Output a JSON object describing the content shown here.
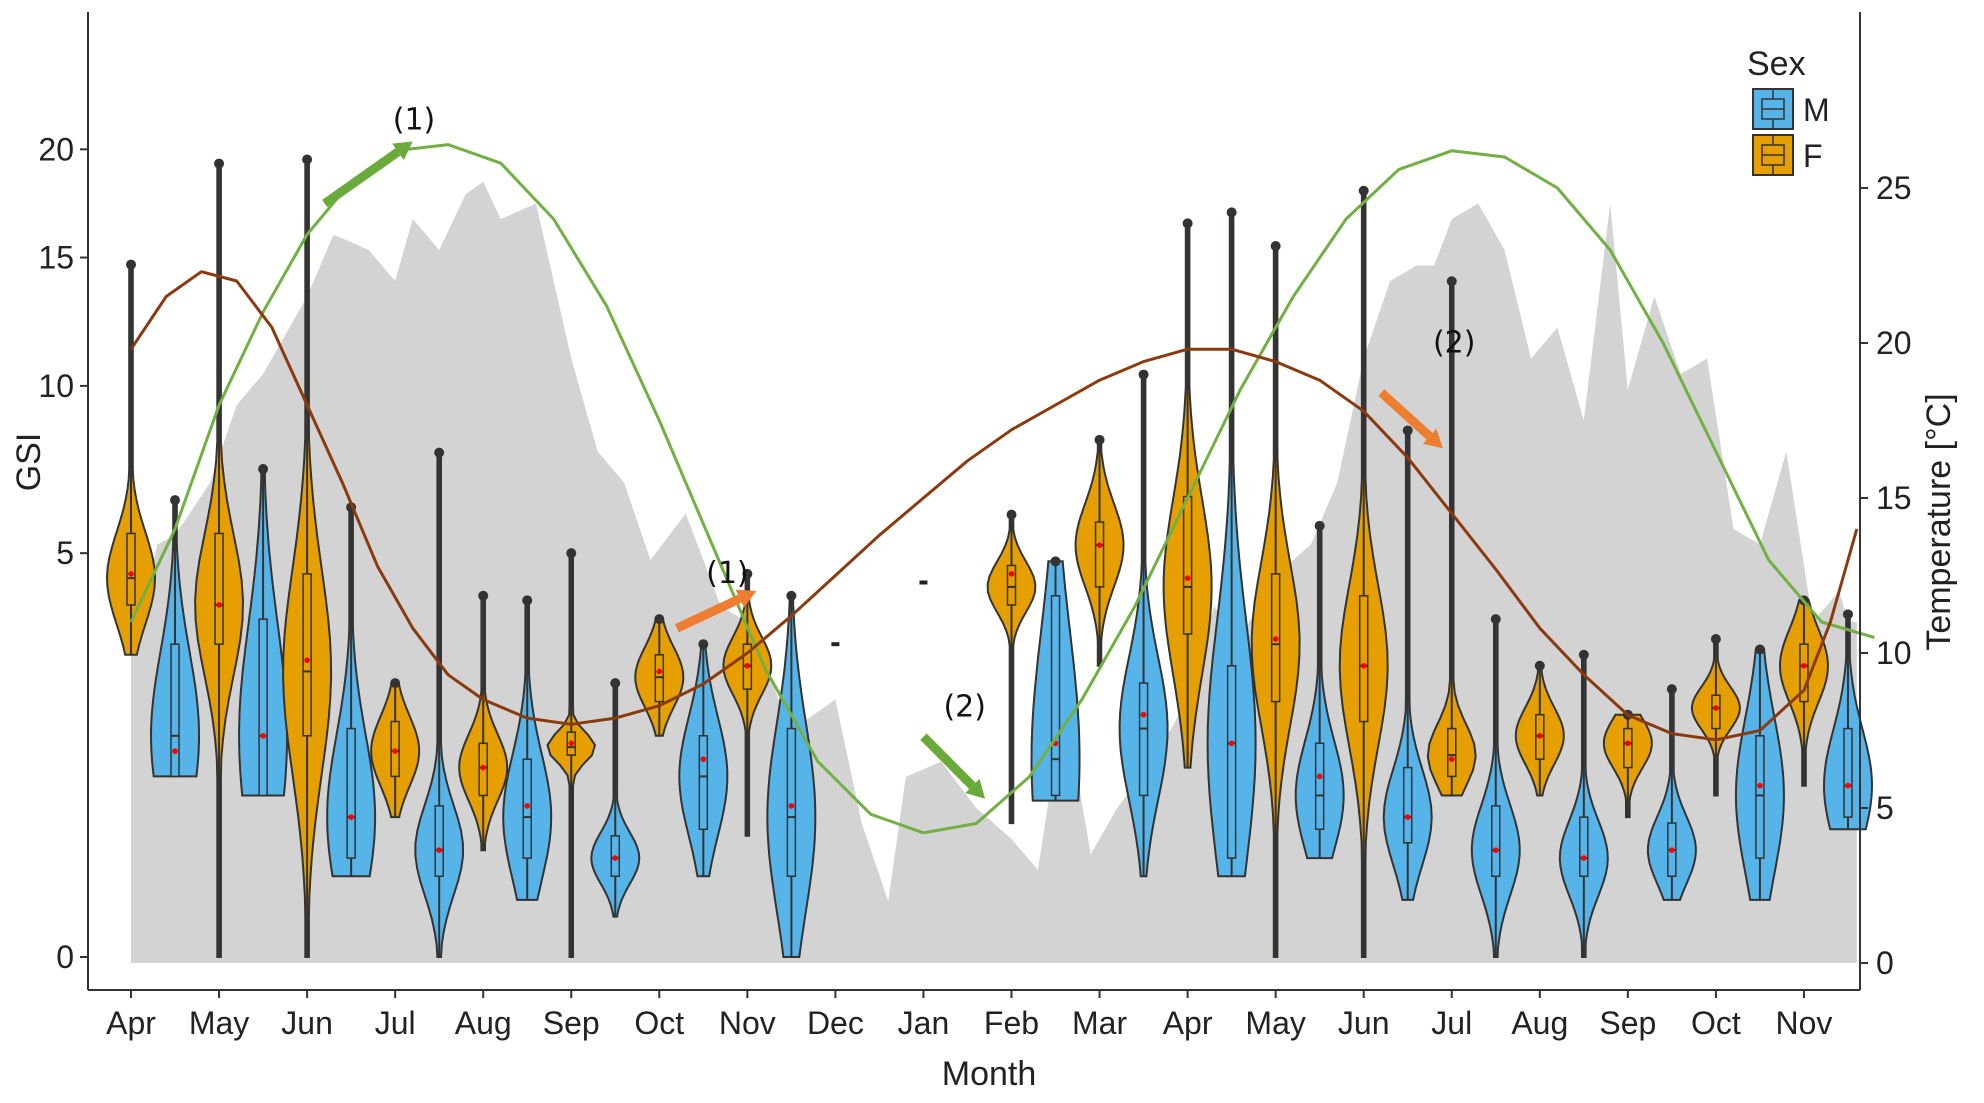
{
  "chart_data": {
    "type": "violin",
    "xlabel": "Month",
    "ylabel": "GSI",
    "y2label": "Temperature [°C]",
    "categories": [
      "Apr",
      "May",
      "Jun",
      "Jul",
      "Aug",
      "Sep",
      "Oct",
      "Nov",
      "Dec",
      "Jan",
      "Feb",
      "Mar",
      "Apr",
      "May",
      "Jun",
      "Jul",
      "Aug",
      "Sep",
      "Oct",
      "Nov"
    ],
    "y_ticks": [
      0,
      5,
      10,
      15,
      20
    ],
    "y_tick_labels": [
      "0",
      "5",
      "10",
      "15",
      "20"
    ],
    "y_scale": "sqrt",
    "y2_ticks": [
      0,
      5,
      10,
      15,
      20,
      25
    ],
    "y2_tick_labels": [
      "0",
      "5",
      "10",
      "15",
      "20",
      "25"
    ],
    "y2lim": [
      0,
      30
    ],
    "grid": false,
    "legend": {
      "title": "Sex",
      "position": "top-right",
      "entries": [
        {
          "label": "M",
          "color": "#56B4E9"
        },
        {
          "label": "F",
          "color": "#E69F00"
        }
      ]
    },
    "colors": {
      "M": "#56B4E9",
      "F": "#E69F00",
      "temperature_area": "#D3D3D3",
      "curve_green": "#72B043",
      "curve_brown": "#8B3A0F",
      "arrow_green": "#6AAA3A",
      "arrow_orange": "#ED7D31",
      "mean_marker": "#FF0000"
    },
    "violins": [
      {
        "sex": "F",
        "pos": 0,
        "min": 2.8,
        "max": 14.7,
        "q1": 3.8,
        "median": 4.4,
        "q3": 5.5,
        "mean": 4.5
      },
      {
        "sex": "M",
        "pos": 0.5,
        "min": 1.0,
        "max": 6.4,
        "q1": 1.0,
        "median": 1.5,
        "q3": 3.0,
        "mean": 1.3
      },
      {
        "sex": "F",
        "pos": 1,
        "min": 0,
        "max": 19.3,
        "q1": 3.0,
        "median": 3.8,
        "q3": 5.5,
        "mean": 3.8
      },
      {
        "sex": "M",
        "pos": 1.5,
        "min": 0.8,
        "max": 7.3,
        "q1": 0.8,
        "median": 1.5,
        "q3": 3.5,
        "mean": 1.5
      },
      {
        "sex": "F",
        "pos": 2,
        "min": 0,
        "max": 19.5,
        "q1": 1.5,
        "median": 2.5,
        "q3": 4.5,
        "mean": 2.7
      },
      {
        "sex": "M",
        "pos": 2.5,
        "min": 0.2,
        "max": 6.2,
        "q1": 0.3,
        "median": 0.6,
        "q3": 1.6,
        "mean": 0.6
      },
      {
        "sex": "F",
        "pos": 3,
        "min": 0.6,
        "max": 2.3,
        "q1": 1.0,
        "median": 1.3,
        "q3": 1.7,
        "mean": 1.3
      },
      {
        "sex": "M",
        "pos": 3.5,
        "min": 0.0,
        "max": 7.8,
        "q1": 0.2,
        "median": 0.35,
        "q3": 0.7,
        "mean": 0.35
      },
      {
        "sex": "F",
        "pos": 4,
        "min": 0.35,
        "max": 4.0,
        "q1": 0.8,
        "median": 1.1,
        "q3": 1.4,
        "mean": 1.1
      },
      {
        "sex": "M",
        "pos": 4.5,
        "min": 0.1,
        "max": 3.9,
        "q1": 0.3,
        "median": 0.6,
        "q3": 1.2,
        "mean": 0.7
      },
      {
        "sex": "F",
        "pos": 5,
        "min": 0,
        "max": 5.0,
        "q1": 1.25,
        "median": 1.35,
        "q3": 1.55,
        "mean": 1.4
      },
      {
        "sex": "M",
        "pos": 5.5,
        "min": 0.05,
        "max": 2.3,
        "q1": 0.2,
        "median": 0.3,
        "q3": 0.45,
        "mean": 0.3
      },
      {
        "sex": "F",
        "pos": 6,
        "min": 1.5,
        "max": 3.5,
        "q1": 2.0,
        "median": 2.4,
        "q3": 2.8,
        "mean": 2.5
      },
      {
        "sex": "M",
        "pos": 6.5,
        "min": 0.2,
        "max": 3.0,
        "q1": 0.5,
        "median": 1.0,
        "q3": 1.5,
        "mean": 1.2
      },
      {
        "sex": "F",
        "pos": 7,
        "min": 0.45,
        "max": 4.5,
        "q1": 2.2,
        "median": 2.6,
        "q3": 3.0,
        "mean": 2.6
      },
      {
        "sex": "M",
        "pos": 7.5,
        "min": 0,
        "max": 4.0,
        "q1": 0.2,
        "median": 0.6,
        "q3": 1.6,
        "mean": 0.7
      },
      {
        "sex": "F",
        "pos": 10,
        "min": 0.55,
        "max": 6.0,
        "q1": 3.8,
        "median": 4.2,
        "q3": 4.7,
        "mean": 4.5
      },
      {
        "sex": "M",
        "pos": 10.5,
        "min": 0.75,
        "max": 4.8,
        "q1": 0.8,
        "median": 1.2,
        "q3": 4.0,
        "mean": 1.4
      },
      {
        "sex": "F",
        "pos": 11,
        "min": 2.6,
        "max": 8.2,
        "q1": 4.2,
        "median": 5.2,
        "q3": 5.8,
        "mean": 5.2
      },
      {
        "sex": "M",
        "pos": 11.5,
        "min": 0.2,
        "max": 10.4,
        "q1": 0.8,
        "median": 1.6,
        "q3": 2.3,
        "mean": 1.8
      },
      {
        "sex": "F",
        "pos": 12,
        "min": 1.1,
        "max": 16.5,
        "q1": 3.2,
        "median": 4.2,
        "q3": 6.5,
        "mean": 4.4
      },
      {
        "sex": "M",
        "pos": 12.5,
        "min": 0.2,
        "max": 17.0,
        "q1": 0.3,
        "median": 1.4,
        "q3": 2.6,
        "mean": 1.4
      },
      {
        "sex": "F",
        "pos": 13,
        "min": 0,
        "max": 15.5,
        "q1": 2.0,
        "median": 3.0,
        "q3": 4.5,
        "mean": 3.1
      },
      {
        "sex": "M",
        "pos": 13.5,
        "min": 0.3,
        "max": 5.7,
        "q1": 0.5,
        "median": 0.8,
        "q3": 1.4,
        "mean": 1.0
      },
      {
        "sex": "F",
        "pos": 14,
        "min": 0,
        "max": 18.0,
        "q1": 1.7,
        "median": 2.6,
        "q3": 4.0,
        "mean": 2.6
      },
      {
        "sex": "M",
        "pos": 14.5,
        "min": 0.1,
        "max": 8.5,
        "q1": 0.4,
        "median": 0.6,
        "q3": 1.1,
        "mean": 0.6
      },
      {
        "sex": "F",
        "pos": 15,
        "min": 0.8,
        "max": 14.0,
        "q1": 1.0,
        "median": 1.25,
        "q3": 1.6,
        "mean": 1.2
      },
      {
        "sex": "M",
        "pos": 15.5,
        "min": 0,
        "max": 3.5,
        "q1": 0.2,
        "median": 0.35,
        "q3": 0.7,
        "mean": 0.35
      },
      {
        "sex": "F",
        "pos": 16,
        "min": 0.8,
        "max": 2.6,
        "q1": 1.2,
        "median": 1.5,
        "q3": 1.8,
        "mean": 1.5
      },
      {
        "sex": "M",
        "pos": 16.5,
        "min": 0,
        "max": 2.8,
        "q1": 0.2,
        "median": 0.3,
        "q3": 0.6,
        "mean": 0.3
      },
      {
        "sex": "F",
        "pos": 17,
        "min": 0.6,
        "max": 1.8,
        "q1": 1.1,
        "median": 1.4,
        "q3": 1.6,
        "mean": 1.4
      },
      {
        "sex": "M",
        "pos": 17.5,
        "min": 0.1,
        "max": 2.2,
        "q1": 0.2,
        "median": 0.35,
        "q3": 0.55,
        "mean": 0.35
      },
      {
        "sex": "F",
        "pos": 18,
        "min": 0.8,
        "max": 3.1,
        "q1": 1.6,
        "median": 1.9,
        "q3": 2.1,
        "mean": 1.9
      },
      {
        "sex": "M",
        "pos": 18.5,
        "min": 0.1,
        "max": 2.9,
        "q1": 0.3,
        "median": 0.8,
        "q3": 1.5,
        "mean": 0.9
      },
      {
        "sex": "F",
        "pos": 19,
        "min": 0.9,
        "max": 3.9,
        "q1": 2.0,
        "median": 2.6,
        "q3": 3.0,
        "mean": 2.6
      },
      {
        "sex": "M",
        "pos": 19.5,
        "min": 0.5,
        "max": 3.6,
        "q1": 0.6,
        "median": 0.9,
        "q3": 1.6,
        "mean": 0.9
      }
    ],
    "small_marks": [
      {
        "pos": 8.0,
        "value": 3.0
      },
      {
        "pos": 9.0,
        "value": 4.3
      }
    ],
    "temperature_area": {
      "x": [
        0.0,
        0.1,
        0.3,
        0.5,
        0.9,
        1.2,
        1.5,
        1.8,
        2.0,
        2.3,
        2.7,
        3.0,
        3.2,
        3.5,
        3.8,
        4.0,
        4.2,
        4.6,
        5.0,
        5.3,
        5.6,
        5.9,
        6.3,
        6.7,
        7.0,
        7.5,
        8.0,
        8.3,
        8.6,
        8.8,
        9.2,
        9.6,
        10.0,
        10.3,
        10.6,
        10.9,
        11.2,
        11.6,
        12.0,
        12.3,
        12.6,
        13.0,
        13.4,
        13.7,
        14.0,
        14.3,
        14.6,
        14.8,
        15.0,
        15.3,
        15.6,
        15.9,
        16.2,
        16.5,
        16.8,
        17.0,
        17.3,
        17.6,
        17.9,
        18.2,
        18.5,
        18.8,
        19.1,
        19.4,
        19.5,
        19.6
      ],
      "temp": [
        12.5,
        11.0,
        13.5,
        13.8,
        15.5,
        18.0,
        19.0,
        20.5,
        21.5,
        23.5,
        23.0,
        22.0,
        24.0,
        23.0,
        24.8,
        25.2,
        24.0,
        24.5,
        19.5,
        16.5,
        15.5,
        13.0,
        14.5,
        11.5,
        11.0,
        7.5,
        8.5,
        4.5,
        2.0,
        6.0,
        6.5,
        5.0,
        4.0,
        3.0,
        8.5,
        3.5,
        5.0,
        6.5,
        8.5,
        11.5,
        10.5,
        12.5,
        13.5,
        15.5,
        19.5,
        22.0,
        22.5,
        22.5,
        24.0,
        24.5,
        23.0,
        19.5,
        20.5,
        17.5,
        24.5,
        18.5,
        21.5,
        19.0,
        19.5,
        14.0,
        13.5,
        16.5,
        11.0,
        12.0,
        11.0,
        11.0
      ]
    },
    "curve_green": {
      "x": [
        0.0,
        0.5,
        1.0,
        1.5,
        2.0,
        2.5,
        3.0,
        3.6,
        4.2,
        4.8,
        5.4,
        6.0,
        6.6,
        7.2,
        7.8,
        8.4,
        9.0,
        9.6,
        10.2,
        10.8,
        11.4,
        12.0,
        12.6,
        13.2,
        13.8,
        14.4,
        15.0,
        15.6,
        16.2,
        16.8,
        17.4,
        18.0,
        18.6,
        19.2,
        19.8
      ],
      "temp": [
        11.0,
        14.0,
        18.0,
        21.0,
        23.5,
        25.2,
        26.2,
        26.4,
        25.8,
        24.0,
        21.2,
        17.5,
        13.5,
        9.5,
        6.5,
        4.8,
        4.2,
        4.5,
        6.0,
        8.5,
        11.5,
        15.0,
        18.5,
        21.5,
        24.0,
        25.6,
        26.2,
        26.0,
        25.0,
        23.0,
        20.0,
        16.5,
        13.0,
        11.0,
        10.5
      ]
    },
    "curve_brown": {
      "x": [
        0.0,
        0.4,
        0.8,
        1.2,
        1.6,
        2.0,
        2.4,
        2.8,
        3.2,
        3.6,
        4.0,
        4.5,
        5.0,
        5.5,
        6.0,
        6.5,
        7.0,
        7.5,
        8.0,
        8.5,
        9.0,
        9.5,
        10.0,
        10.5,
        11.0,
        11.5,
        12.0,
        12.5,
        13.0,
        13.5,
        14.0,
        14.5,
        15.0,
        15.5,
        16.0,
        16.5,
        17.0,
        17.5,
        18.0,
        18.5,
        19.0,
        19.3,
        19.6
      ],
      "temp": [
        19.8,
        21.5,
        22.3,
        22.0,
        20.5,
        18.0,
        15.5,
        12.8,
        10.8,
        9.3,
        8.5,
        7.9,
        7.7,
        7.9,
        8.3,
        9.0,
        10.0,
        11.2,
        12.5,
        13.8,
        15.0,
        16.2,
        17.2,
        18.0,
        18.8,
        19.4,
        19.8,
        19.8,
        19.4,
        18.8,
        17.8,
        16.3,
        14.5,
        12.7,
        10.8,
        9.3,
        8.0,
        7.4,
        7.2,
        7.5,
        8.8,
        11.0,
        14.0
      ]
    },
    "annotations": [
      {
        "label": "(1)",
        "color": "green",
        "from": [
          2.2,
          24.5
        ],
        "to": [
          3.2,
          26.5
        ]
      },
      {
        "label": "(1)",
        "color": "orange",
        "from": [
          6.2,
          10.8
        ],
        "to": [
          7.1,
          12.0
        ]
      },
      {
        "label": "(2)",
        "color": "green",
        "from": [
          9.0,
          7.3
        ],
        "to": [
          9.7,
          5.3
        ]
      },
      {
        "label": "(2)",
        "color": "orange",
        "from": [
          14.2,
          18.4
        ],
        "to": [
          14.9,
          16.6
        ]
      }
    ]
  }
}
